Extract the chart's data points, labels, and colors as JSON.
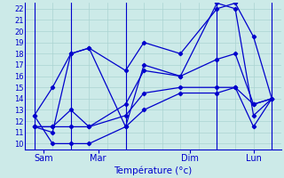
{
  "xlabel": "Température (°c)",
  "background_color": "#cceae8",
  "grid_color": "#aad4d2",
  "line_color": "#0000cc",
  "ylim": [
    9.5,
    22.5
  ],
  "xlim": [
    -0.5,
    13.5
  ],
  "yticks": [
    10,
    11,
    12,
    13,
    14,
    15,
    16,
    17,
    18,
    19,
    20,
    21,
    22
  ],
  "xtick_positions": [
    0.5,
    3.5,
    8.5,
    12.0
  ],
  "xtick_labels": [
    "Sam",
    "Mar",
    "Dim",
    "Lun"
  ],
  "vlines": [
    0,
    2,
    5,
    10,
    13
  ],
  "lines": [
    [
      0,
      12.5,
      1,
      15.0,
      2,
      18.0,
      3,
      18.5,
      5,
      16.5,
      6,
      19.0,
      8,
      18.0,
      10,
      22.0,
      11,
      22.5,
      12,
      19.5,
      13,
      14.0
    ],
    [
      0,
      11.5,
      1,
      11.0,
      2,
      18.0,
      3,
      18.5,
      5,
      11.5,
      6,
      17.0,
      8,
      16.0,
      10,
      22.5,
      11,
      22.0,
      12,
      12.5,
      13,
      14.0
    ],
    [
      0,
      11.5,
      1,
      11.5,
      2,
      13.0,
      3,
      11.5,
      5,
      13.5,
      6,
      16.5,
      8,
      16.0,
      10,
      17.5,
      11,
      18.0,
      12,
      13.5,
      13,
      14.0
    ],
    [
      0,
      11.5,
      1,
      11.5,
      2,
      11.5,
      3,
      11.5,
      5,
      12.5,
      6,
      14.5,
      8,
      15.0,
      10,
      15.0,
      11,
      15.0,
      12,
      13.5,
      13,
      14.0
    ],
    [
      0,
      12.5,
      1,
      10.0,
      2,
      10.0,
      3,
      10.0,
      5,
      11.5,
      6,
      13.0,
      8,
      14.5,
      10,
      14.5,
      11,
      15.0,
      12,
      11.5,
      13,
      14.0
    ]
  ]
}
